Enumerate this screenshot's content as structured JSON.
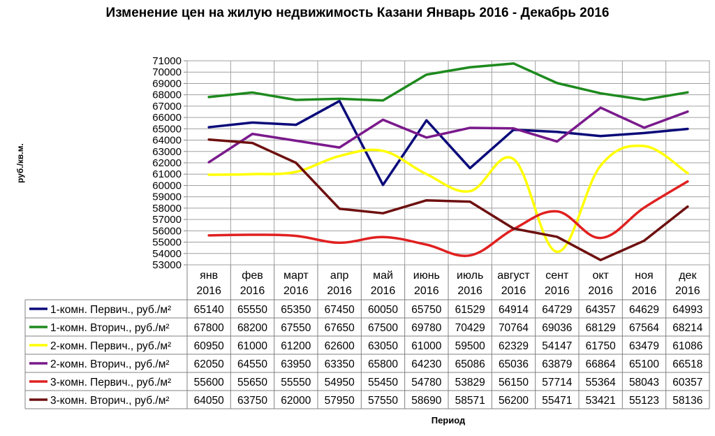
{
  "chart_data": {
    "type": "line",
    "title": "Изменение цен на жилую недвижимость Казани Январь 2016 - Декабрь 2016",
    "ylabel": "руб./кв.м.",
    "xlabel": "Период",
    "ylim": [
      53000,
      71000
    ],
    "ytick_step": 1000,
    "grid": true,
    "legend": "data-table",
    "categories": [
      [
        "янв",
        "2016"
      ],
      [
        "фев",
        "2016"
      ],
      [
        "март",
        "2016"
      ],
      [
        "апр",
        "2016"
      ],
      [
        "май",
        "2016"
      ],
      [
        "июнь",
        "2016"
      ],
      [
        "июль",
        "2016"
      ],
      [
        "август",
        "2016"
      ],
      [
        "сент",
        "2016"
      ],
      [
        "окт",
        "2016"
      ],
      [
        "ноя",
        "2016"
      ],
      [
        "дек",
        "2016"
      ]
    ],
    "series": [
      {
        "name": "1-комн. Первич., руб./м²",
        "color": "#0a0a7a",
        "smooth": false,
        "values": [
          65140,
          65550,
          65350,
          67450,
          60050,
          65750,
          61529,
          64914,
          64729,
          64357,
          64629,
          64993
        ]
      },
      {
        "name": "1-комн. Вторич., руб./м²",
        "color": "#1e8a1e",
        "smooth": false,
        "values": [
          67800,
          68200,
          67550,
          67650,
          67500,
          69780,
          70429,
          70764,
          69036,
          68129,
          67564,
          68214
        ]
      },
      {
        "name": "2-комн. Первич., руб./м²",
        "color": "#ffff00",
        "smooth": true,
        "values": [
          60950,
          61000,
          61200,
          62600,
          63050,
          61000,
          59500,
          62329,
          54147,
          61750,
          63479,
          61086
        ]
      },
      {
        "name": "2-комн. Вторич., руб./м²",
        "color": "#7a1a8c",
        "smooth": false,
        "values": [
          62050,
          64550,
          63950,
          63350,
          65800,
          64230,
          65086,
          65036,
          63879,
          66864,
          65100,
          66518
        ]
      },
      {
        "name": "3-комн. Первич., руб./м²",
        "color": "#e02020",
        "smooth": true,
        "values": [
          55600,
          55650,
          55550,
          54950,
          55450,
          54780,
          53829,
          56150,
          57714,
          55364,
          58043,
          60357
        ]
      },
      {
        "name": "3-комн. Вторич., руб./м²",
        "color": "#6e1010",
        "smooth": false,
        "values": [
          64050,
          63750,
          62000,
          57950,
          57550,
          58690,
          58571,
          56200,
          55471,
          53421,
          55123,
          58136
        ]
      }
    ]
  }
}
